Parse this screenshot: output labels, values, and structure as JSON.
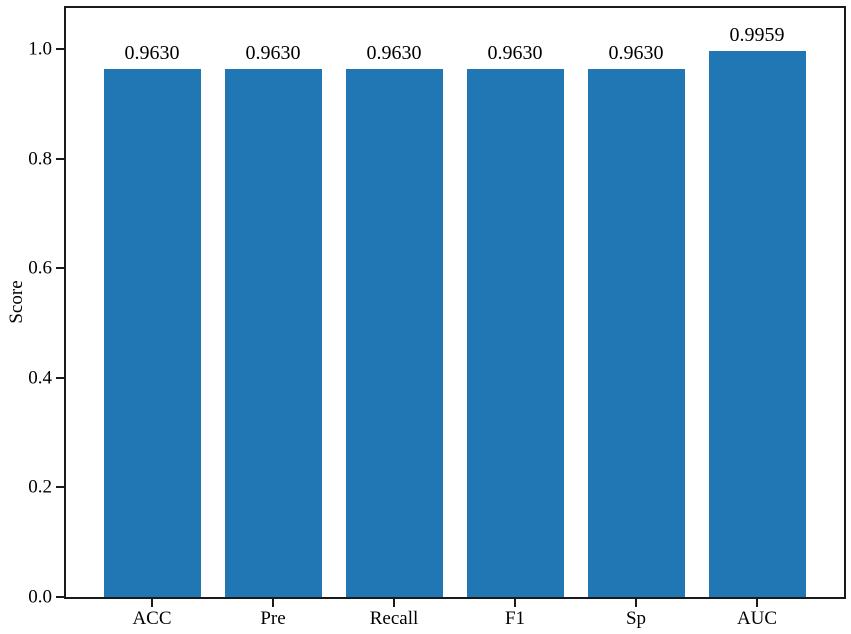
{
  "chart_data": {
    "type": "bar",
    "title": "",
    "xlabel": "",
    "ylabel": "Score",
    "categories": [
      "ACC",
      "Pre",
      "Recall",
      "F1",
      "Sp",
      "AUC"
    ],
    "values": [
      0.963,
      0.963,
      0.963,
      0.963,
      0.963,
      0.9959
    ],
    "value_labels": [
      "0.9630",
      "0.9630",
      "0.9630",
      "0.9630",
      "0.9630",
      "0.9959"
    ],
    "ylim": [
      0.0,
      1.0
    ],
    "yticks": [
      0.0,
      0.2,
      0.4,
      0.6,
      0.8,
      1.0
    ],
    "ytick_labels": [
      "0.0",
      "0.2",
      "0.4",
      "0.6",
      "0.8",
      "1.0"
    ],
    "grid": false,
    "legend_position": "none",
    "bar_color": "#2077b4",
    "axis_color": "#1a1a1a",
    "text_color": "#000000"
  }
}
